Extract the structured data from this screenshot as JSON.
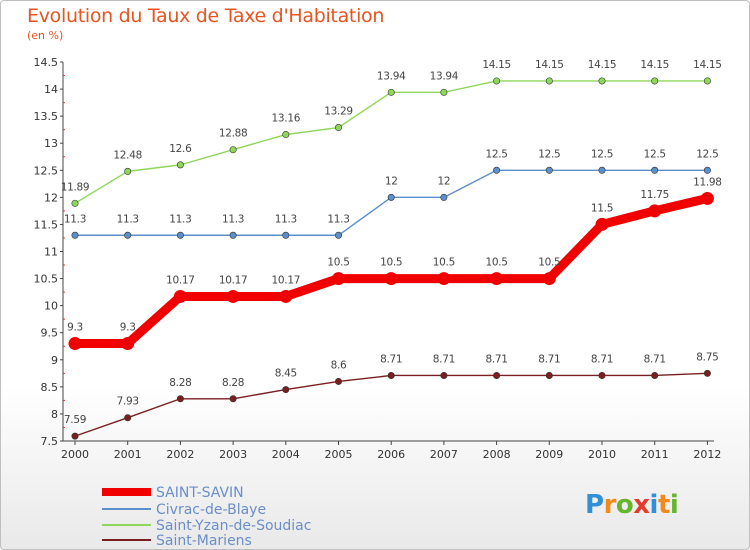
{
  "header": {
    "title": "Evolution du Taux de Taxe d'Habitation",
    "unit": "(en %)"
  },
  "logo": {
    "letters": [
      "P",
      "r",
      "o",
      "x",
      "i",
      "t",
      "i"
    ],
    "colors": [
      "#2f8fd8",
      "#f08a1c",
      "#67b52f",
      "#e53b2a",
      "#2f8fd8",
      "#f08a1c",
      "#67b52f"
    ]
  },
  "chart_data": {
    "type": "line",
    "x": [
      "2000",
      "2001",
      "2002",
      "2003",
      "2004",
      "2005",
      "2006",
      "2007",
      "2008",
      "2009",
      "2010",
      "2011",
      "2012"
    ],
    "ylim": [
      7.5,
      14.5
    ],
    "yticks": [
      7.5,
      8,
      8.5,
      9,
      9.5,
      10,
      10.5,
      11,
      11.5,
      12,
      12.5,
      13,
      13.5,
      14,
      14.5
    ],
    "grid": false,
    "legend_position": "bottom-left",
    "series": [
      {
        "name": "SAINT-SAVIN",
        "color": "#f00000",
        "values": [
          9.3,
          9.3,
          10.17,
          10.17,
          10.17,
          10.5,
          10.5,
          10.5,
          10.5,
          10.5,
          11.5,
          11.75,
          11.98
        ],
        "labels": [
          "9.3",
          "9.3",
          "10.17",
          "10.17",
          "10.17",
          "10.5",
          "10.5",
          "10.5",
          "10.5",
          "10.5",
          "11.5",
          "11.75",
          "11.98"
        ]
      },
      {
        "name": "Civrac-de-Blaye",
        "color": "#5b8fc9",
        "values": [
          11.3,
          11.3,
          11.3,
          11.3,
          11.3,
          11.3,
          12,
          12,
          12.5,
          12.5,
          12.5,
          12.5,
          12.5
        ],
        "labels": [
          "11.3",
          "11.3",
          "11.3",
          "11.3",
          "11.3",
          "11.3",
          "12",
          "12",
          "12.5",
          "12.5",
          "12.5",
          "12.5",
          "12.5"
        ]
      },
      {
        "name": "Saint-Yzan-de-Soudiac",
        "color": "#8fd65a",
        "values": [
          11.89,
          12.48,
          12.6,
          12.88,
          13.16,
          13.29,
          13.94,
          13.94,
          14.15,
          14.15,
          14.15,
          14.15,
          14.15
        ],
        "labels": [
          "11.89",
          "12.48",
          "12.6",
          "12.88",
          "13.16",
          "13.29",
          "13.94",
          "13.94",
          "14.15",
          "14.15",
          "14.15",
          "14.15",
          "14.15"
        ]
      },
      {
        "name": "Saint-Mariens",
        "color": "#7a1f1f",
        "values": [
          7.59,
          7.93,
          8.28,
          8.28,
          8.45,
          8.6,
          8.71,
          8.71,
          8.71,
          8.71,
          8.71,
          8.71,
          8.75
        ],
        "labels": [
          "7.59",
          "7.93",
          "8.28",
          "8.28",
          "8.45",
          "8.6",
          "8.71",
          "8.71",
          "8.71",
          "8.71",
          "8.71",
          "8.71",
          "8.75"
        ]
      }
    ]
  }
}
